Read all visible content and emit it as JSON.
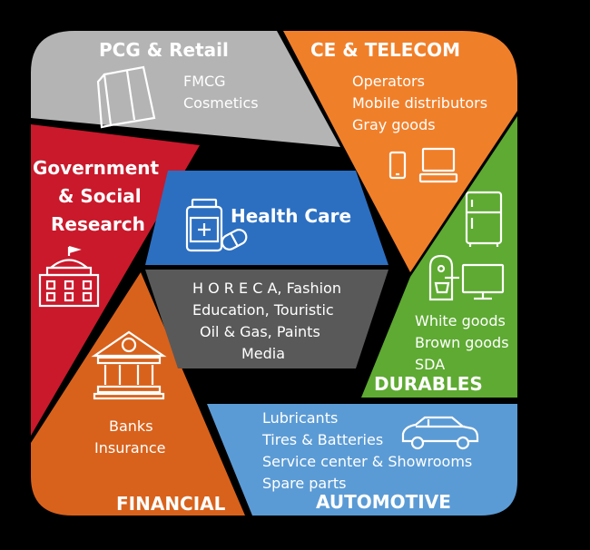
{
  "segments": {
    "pcg": {
      "title": "PCG & Retail",
      "items": [
        "FMCG",
        "Cosmetics"
      ],
      "color": "#B4B4B4",
      "icon": "shopping-bag-icon"
    },
    "ce": {
      "title": "CE & TELECOM",
      "items": [
        "Operators",
        "Mobile distributors",
        "Gray goods"
      ],
      "color": "#F07F2A",
      "icons": [
        "smartphone-icon",
        "computer-icon"
      ]
    },
    "government": {
      "title_lines": [
        "Government",
        "& Social",
        "Research"
      ],
      "color": "#C9192B",
      "icon": "government-building-icon"
    },
    "durables": {
      "title": "DURABLES",
      "items": [
        "White goods",
        "Brown goods",
        "SDA"
      ],
      "color": "#5EAA32",
      "icons": [
        "refrigerator-icon",
        "coffee-machine-icon",
        "monitor-icon"
      ]
    },
    "financial": {
      "title": "FINANCIAL",
      "items": [
        "Banks",
        "Insurance"
      ],
      "color": "#D8621C",
      "icon": "bank-icon"
    },
    "automotive": {
      "title": "AUTOMOTIVE",
      "items": [
        "Lubricants",
        "Tires & Batteries",
        "Service center & Showrooms",
        "Spare parts"
      ],
      "color": "#5B9BD5",
      "icon": "car-icon"
    },
    "health": {
      "title": "Health Care",
      "color": "#2C6FC1",
      "icon": "medicine-icon"
    },
    "other": {
      "items": [
        "H O R E C A, Fashion",
        "Education, Touristic",
        "Oil & Gas, Paints",
        "Media"
      ],
      "color": "#595959"
    }
  }
}
